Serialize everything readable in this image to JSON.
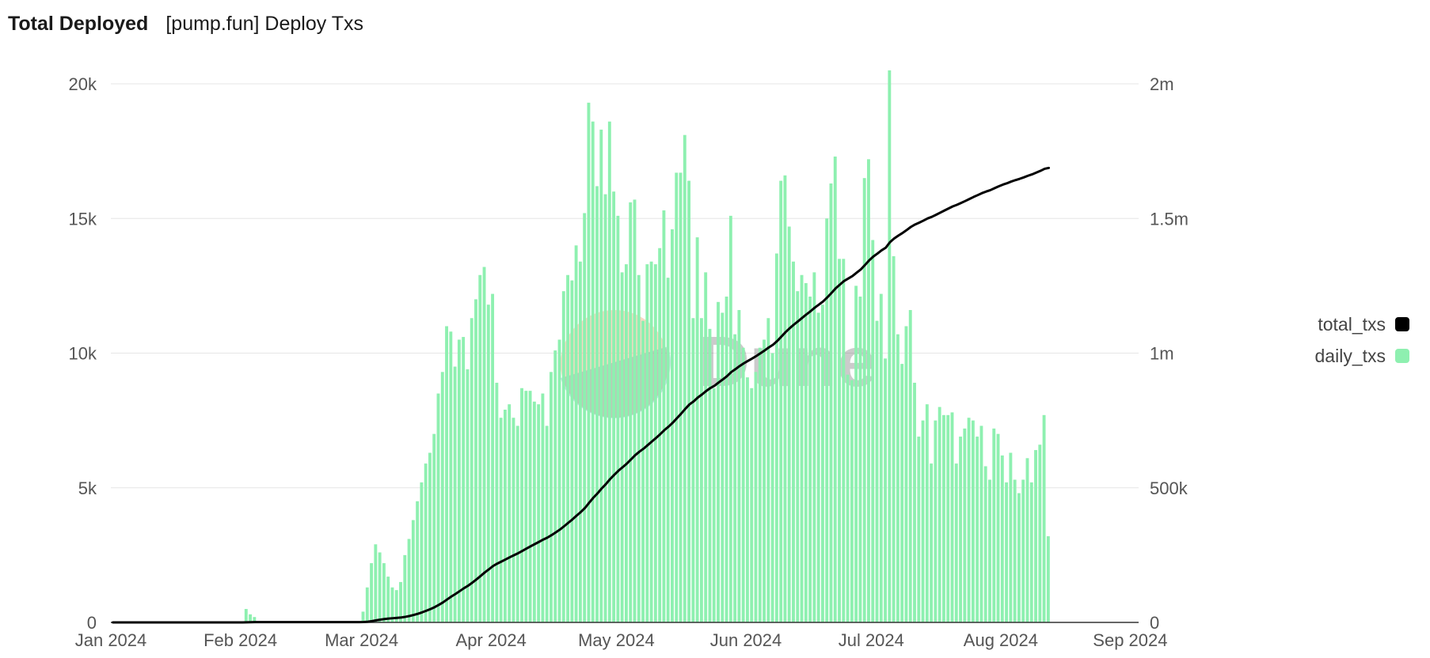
{
  "header": {
    "title": "Total Deployed",
    "subtitle": "[pump.fun] Deploy Txs"
  },
  "watermark": "Dune",
  "chart_data": {
    "type": "bar",
    "x_start": "2024-01-01",
    "x_end": "2024-09-03",
    "x_tick_labels": [
      "Jan 2024",
      "Feb 2024",
      "Mar 2024",
      "Apr 2024",
      "May 2024",
      "Jun 2024",
      "Jul 2024",
      "Aug 2024",
      "Sep 2024"
    ],
    "x_tick_dates": [
      "2024-01-01",
      "2024-02-01",
      "2024-03-01",
      "2024-04-01",
      "2024-05-01",
      "2024-06-01",
      "2024-07-01",
      "2024-08-01",
      "2024-09-01"
    ],
    "y_left": {
      "range": [
        0,
        20000
      ],
      "ticks": [
        0,
        5000,
        10000,
        15000,
        20000
      ],
      "tick_labels": [
        "0",
        "5k",
        "10k",
        "15k",
        "20k"
      ]
    },
    "y_right": {
      "range": [
        0,
        2000000
      ],
      "ticks": [
        0,
        500000,
        1000000,
        1500000,
        2000000
      ],
      "tick_labels": [
        "0",
        "500k",
        "1m",
        "1.5m",
        "2m"
      ]
    },
    "grid": true,
    "legend_position": "right",
    "series": [
      {
        "name": "daily_txs",
        "kind": "bar",
        "axis": "left",
        "color": "#8ef0b0",
        "start_date": "2024-01-01",
        "values": [
          0,
          0,
          0,
          0,
          0,
          0,
          0,
          0,
          0,
          0,
          0,
          0,
          0,
          0,
          0,
          0,
          0,
          0,
          0,
          0,
          0,
          0,
          0,
          0,
          0,
          0,
          0,
          0,
          0,
          0,
          0,
          0,
          500,
          300,
          200,
          0,
          0,
          0,
          0,
          0,
          0,
          0,
          0,
          0,
          0,
          0,
          0,
          0,
          0,
          0,
          0,
          0,
          0,
          0,
          0,
          0,
          0,
          0,
          0,
          0,
          400,
          1300,
          2200,
          2900,
          2600,
          2200,
          1700,
          1300,
          1200,
          1500,
          2500,
          3100,
          3800,
          4500,
          5200,
          5900,
          6300,
          7000,
          8500,
          9300,
          11000,
          10800,
          9500,
          10500,
          10600,
          9400,
          11300,
          12000,
          12900,
          13200,
          11800,
          12200,
          8900,
          7600,
          7900,
          8100,
          7600,
          7300,
          8700,
          8600,
          8600,
          8200,
          8100,
          8500,
          7300,
          9300,
          10100,
          10500,
          12300,
          12900,
          12700,
          14000,
          13400,
          15200,
          19300,
          18600,
          16200,
          18300,
          15900,
          18600,
          16000,
          15100,
          13000,
          13300,
          15600,
          15700,
          12900,
          11200,
          13300,
          13400,
          13300,
          13900,
          15300,
          12800,
          14600,
          16700,
          16700,
          18100,
          16400,
          11300,
          14300,
          11300,
          13000,
          10900,
          8700,
          11900,
          11500,
          12100,
          15100,
          10700,
          11600,
          10200,
          9100,
          8700,
          9300,
          10200,
          10500,
          11300,
          10000,
          13700,
          16400,
          16600,
          14700,
          13400,
          12300,
          12900,
          12600,
          12100,
          13000,
          11500,
          11800,
          15000,
          16300,
          17300,
          13500,
          13500,
          9200,
          9000,
          12500,
          12100,
          16500,
          17200,
          14200,
          11200,
          12200,
          9800,
          20500,
          13600,
          10700,
          9600,
          11000,
          11600,
          8900,
          6900,
          7500,
          8100,
          5900,
          7500,
          8000,
          7700,
          7700,
          7800,
          5900,
          6900,
          7200,
          7600,
          7500,
          6900,
          7300,
          5800,
          5300,
          7200,
          7000,
          6200,
          5200,
          6300,
          5300,
          4800,
          5300,
          6100,
          5200,
          6400,
          6600,
          7700,
          3200
        ]
      },
      {
        "name": "total_txs",
        "kind": "line",
        "axis": "right",
        "color": "#000000",
        "start_date": "2024-01-01",
        "values": [
          0,
          0,
          0,
          0,
          0,
          0,
          0,
          0,
          0,
          0,
          0,
          0,
          0,
          0,
          0,
          0,
          0,
          0,
          0,
          0,
          0,
          0,
          0,
          0,
          0,
          0,
          0,
          0,
          0,
          0,
          0,
          0,
          500,
          800,
          1000,
          1000,
          1000,
          1000,
          1000,
          1000,
          1000,
          1000,
          1000,
          1000,
          1000,
          1000,
          1000,
          1000,
          1000,
          1000,
          1000,
          1000,
          1000,
          1000,
          1000,
          1000,
          1000,
          1000,
          1000,
          1000,
          1400,
          2700,
          4900,
          7800,
          10400,
          12600,
          14300,
          15600,
          16800,
          18300,
          20800,
          23900,
          27700,
          32200,
          37400,
          43300,
          49600,
          56600,
          65100,
          74400,
          85400,
          96200,
          105700,
          116200,
          126800,
          136200,
          147500,
          159500,
          172400,
          185600,
          197400,
          209600,
          218500,
          226100,
          234000,
          242100,
          249700,
          257000,
          265700,
          274300,
          282900,
          291100,
          299200,
          307700,
          315000,
          324300,
          334400,
          344900,
          357200,
          370100,
          382800,
          396800,
          410200,
          425400,
          444700,
          463300,
          479500,
          497800,
          513700,
          532300,
          548300,
          563400,
          576400,
          589700,
          605300,
          621000,
          633900,
          645100,
          658400,
          671800,
          685100,
          699000,
          714300,
          727100,
          741700,
          758400,
          775100,
          793200,
          809600,
          820900,
          835200,
          846500,
          859500,
          870400,
          879100,
          891000,
          902500,
          914600,
          929700,
          940400,
          952000,
          962200,
          971300,
          980000,
          989300,
          999500,
          1010000,
          1021300,
          1031300,
          1045000,
          1061400,
          1078000,
          1092700,
          1106100,
          1118400,
          1131300,
          1143900,
          1156000,
          1169000,
          1180500,
          1192300,
          1207300,
          1223600,
          1240900,
          1254400,
          1267900,
          1277100,
          1286100,
          1298600,
          1310700,
          1327200,
          1344400,
          1358600,
          1369800,
          1382000,
          1391800,
          1412300,
          1425900,
          1436600,
          1446200,
          1457200,
          1468800,
          1477700,
          1484600,
          1492100,
          1500200,
          1506100,
          1513600,
          1521600,
          1529300,
          1537000,
          1544800,
          1550700,
          1557600,
          1564800,
          1572400,
          1579900,
          1586800,
          1594100,
          1599900,
          1605200,
          1612400,
          1619400,
          1625600,
          1630800,
          1637100,
          1642400,
          1647200,
          1652500,
          1658600,
          1663800,
          1670200,
          1676800,
          1684500,
          1687700
        ]
      }
    ]
  }
}
